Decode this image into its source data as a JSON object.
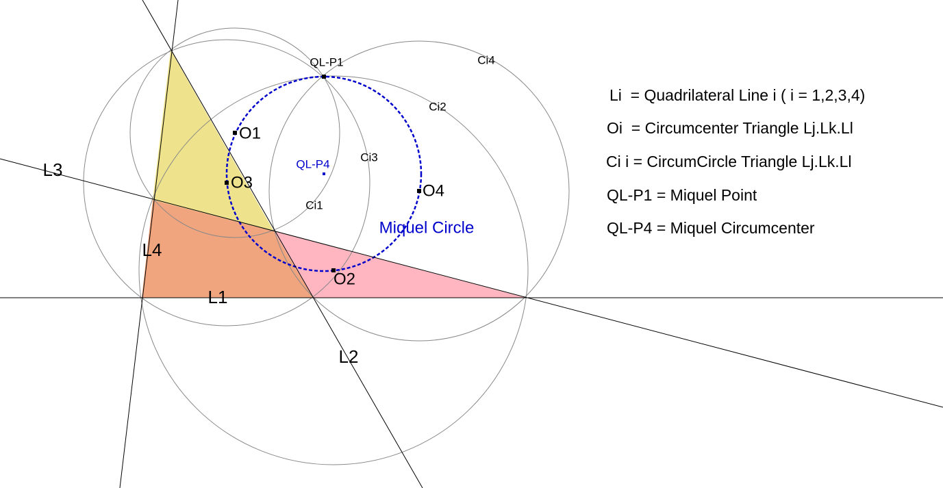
{
  "lines": [
    "L1",
    "L2",
    "L3",
    "L4"
  ],
  "centers": [
    "O1",
    "O2",
    "O3",
    "O4"
  ],
  "circles": [
    "Ci1",
    "Ci2",
    "Ci3",
    "Ci4"
  ],
  "points": [
    "QL-P1",
    "QL-P4"
  ],
  "annotation": "Miquel Circle",
  "legend": [
    "Li  = Quadrilateral Line i ( i = 1,2,3,4)",
    "Oi  = Circumcenter Triangle Lj.Lk.Ll",
    "Ci i = CircumCircle Triangle Lj.Lk.Ll",
    "QL-P1 = Miquel Point",
    "QL-P4 = Miquel Circumcenter"
  ]
}
